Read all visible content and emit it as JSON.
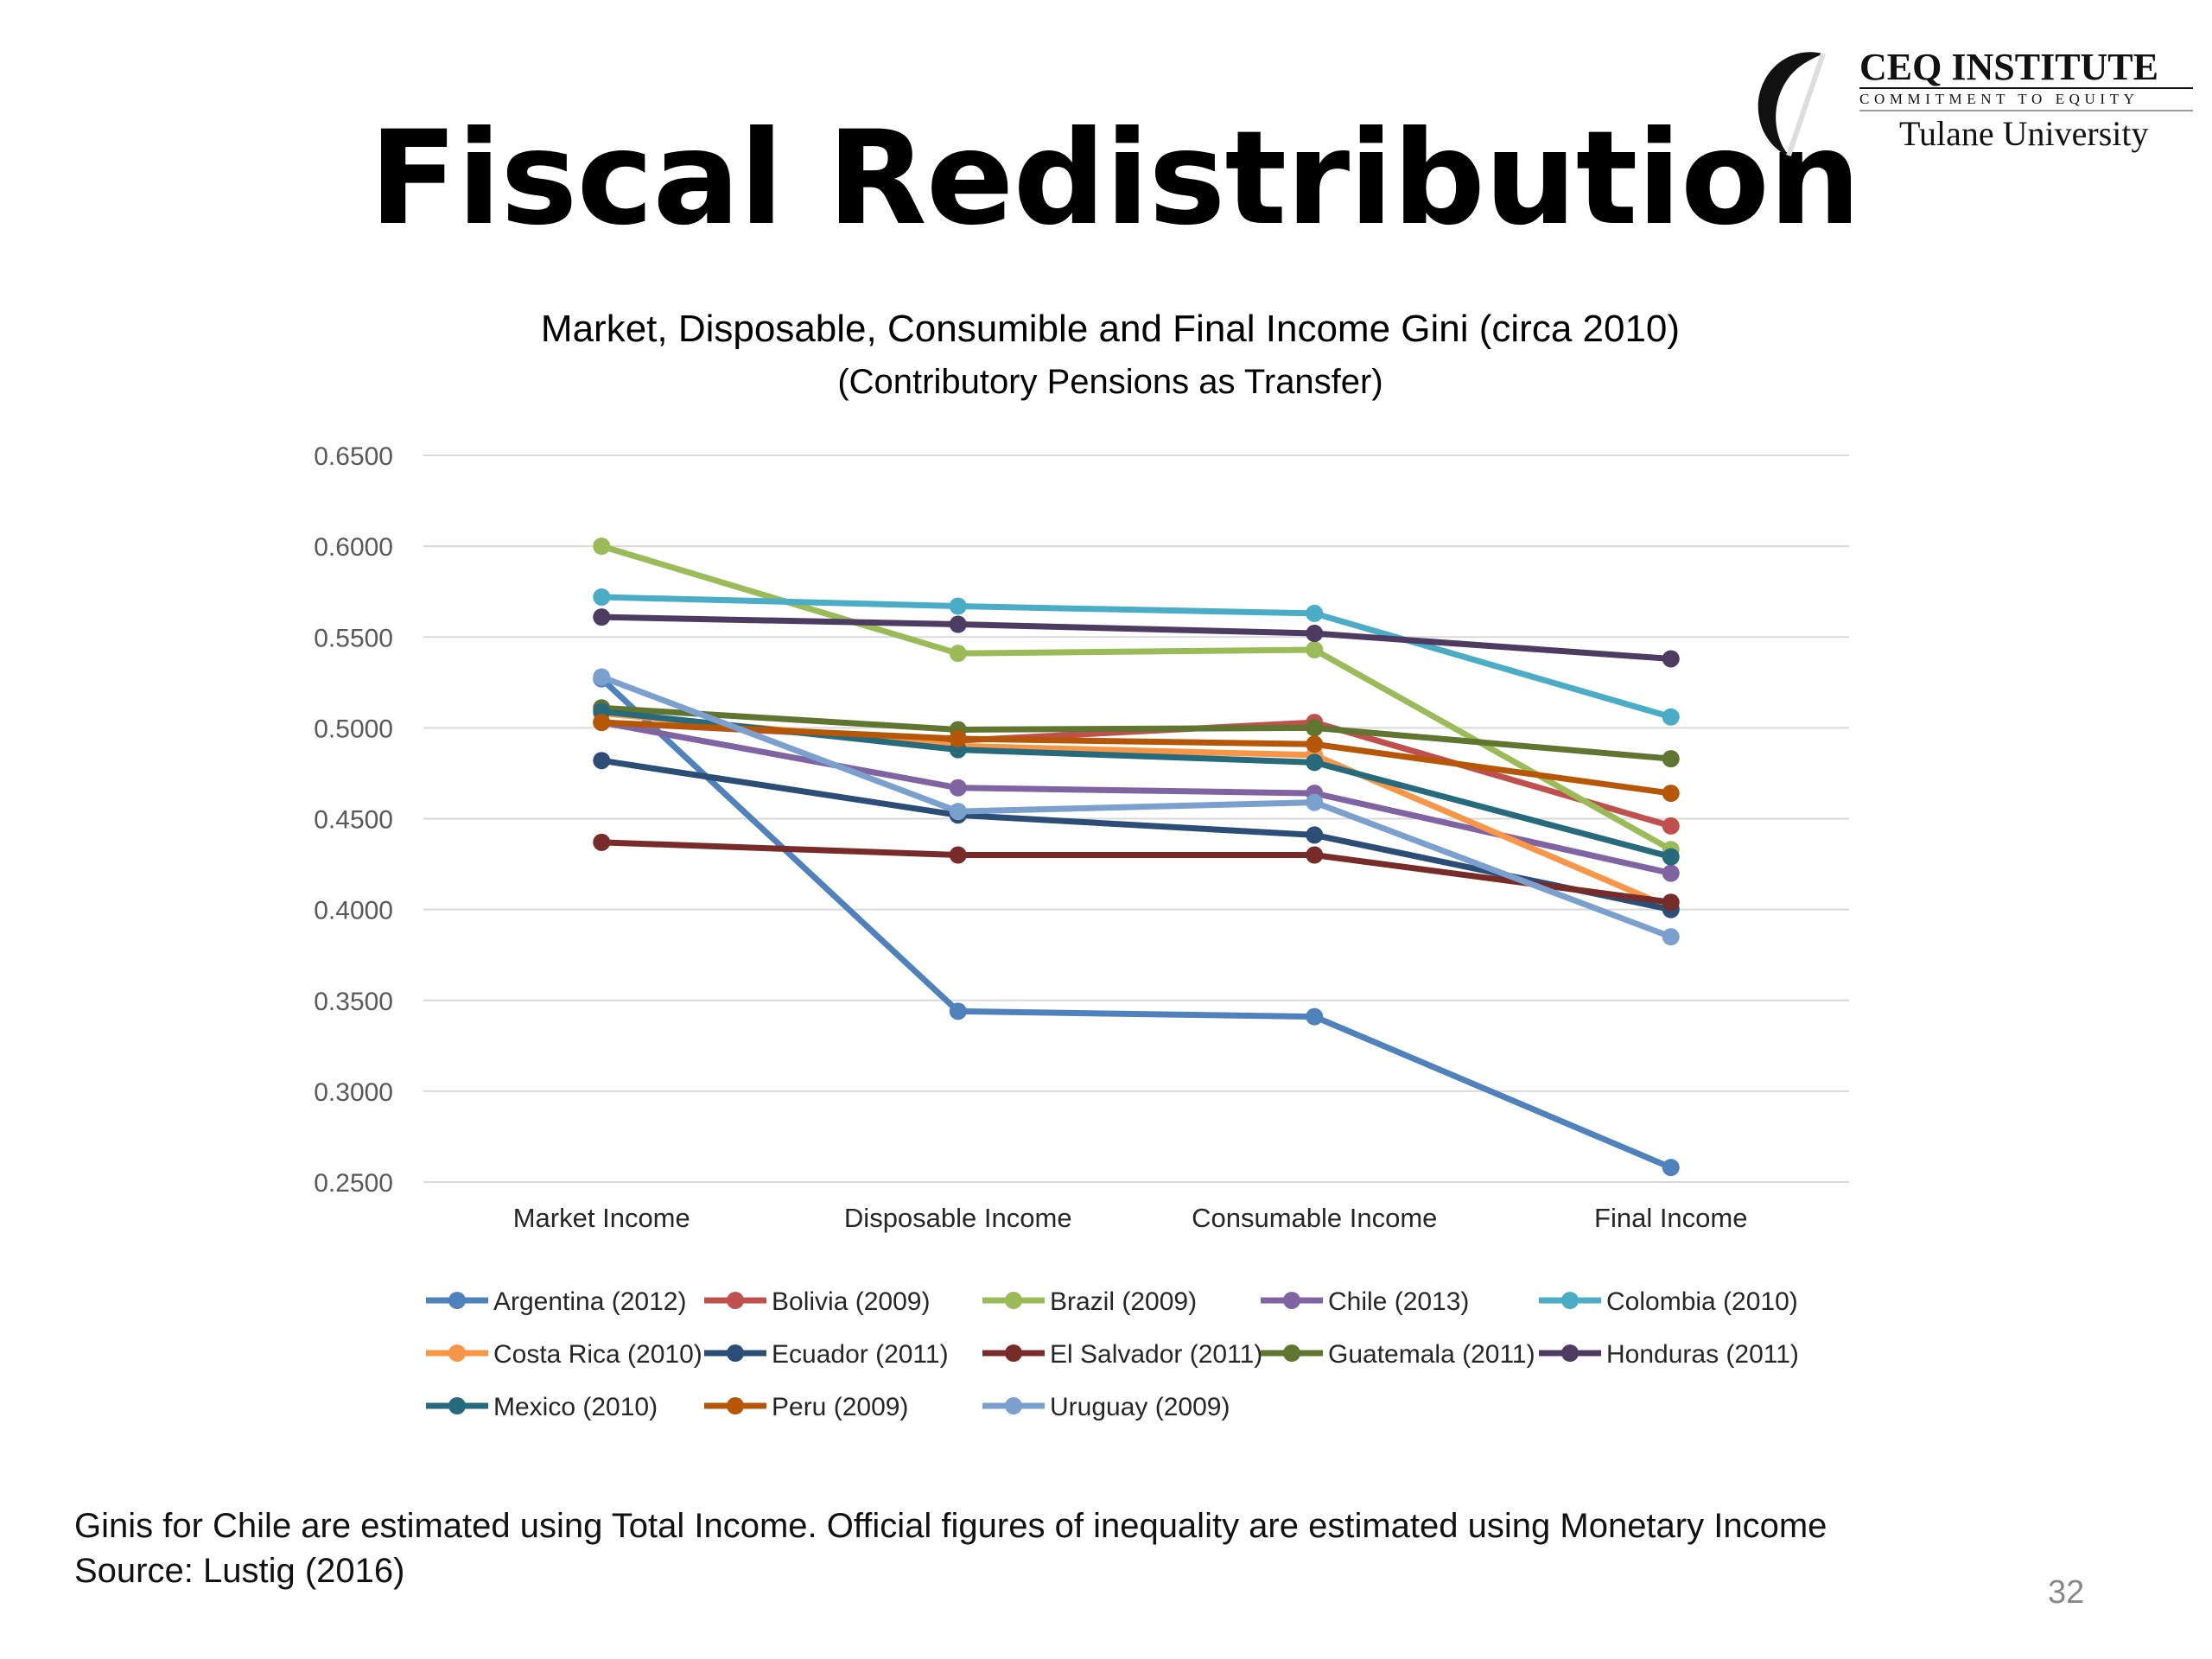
{
  "slide": {
    "title": "Fiscal Redistribution",
    "footnote_line1": "Ginis for Chile are estimated using Total Income. Official figures of inequality are estimated using Monetary Income",
    "footnote_line2": "Source: Lustig (2016)",
    "page_number": "32"
  },
  "logo": {
    "name": "CEQ INSTITUTE",
    "tagline": "COMMITMENT TO EQUITY",
    "university": "Tulane University"
  },
  "colors": {
    "grid": "#d9d9d9",
    "tick_text": "#595959"
  },
  "chart_data": {
    "type": "line",
    "title": "Market, Disposable, Consumible and Final Income Gini (circa 2010)",
    "subtitle": "(Contributory Pensions as Transfer)",
    "xlabel": "",
    "ylabel": "",
    "categories": [
      "Market Income",
      "Disposable Income",
      "Consumable Income",
      "Final Income"
    ],
    "ylim": [
      0.25,
      0.65
    ],
    "yticks": [
      "0.6500",
      "0.6000",
      "0.5500",
      "0.5000",
      "0.4500",
      "0.4000",
      "0.3500",
      "0.3000",
      "0.2500"
    ],
    "ytick_values": [
      0.65,
      0.6,
      0.55,
      0.5,
      0.45,
      0.4,
      0.35,
      0.3,
      0.25
    ],
    "grid": true,
    "legend_position": "bottom",
    "series": [
      {
        "name": "Argentina (2012)",
        "color": "#4f81bd",
        "values": [
          0.527,
          0.344,
          0.341,
          0.258
        ]
      },
      {
        "name": "Bolivia (2009)",
        "color": "#c0504d",
        "values": [
          0.503,
          0.493,
          0.503,
          0.446
        ]
      },
      {
        "name": "Brazil (2009)",
        "color": "#9bbb59",
        "values": [
          0.6,
          0.541,
          0.543,
          0.433
        ]
      },
      {
        "name": "Chile (2013)",
        "color": "#8064a2",
        "values": [
          0.503,
          0.467,
          0.464,
          0.42
        ]
      },
      {
        "name": "Colombia (2010)",
        "color": "#4bacc6",
        "values": [
          0.572,
          0.567,
          0.563,
          0.506
        ]
      },
      {
        "name": "Costa Rica (2010)",
        "color": "#f79646",
        "values": [
          0.508,
          0.49,
          0.485,
          0.401
        ]
      },
      {
        "name": "Ecuador (2011)",
        "color": "#2c4d75",
        "values": [
          0.482,
          0.452,
          0.441,
          0.4
        ]
      },
      {
        "name": "El Salvador (2011)",
        "color": "#772c2a",
        "values": [
          0.437,
          0.43,
          0.43,
          0.404
        ]
      },
      {
        "name": "Guatemala (2011)",
        "color": "#5f7530",
        "values": [
          0.511,
          0.499,
          0.5,
          0.483
        ]
      },
      {
        "name": "Honduras (2011)",
        "color": "#4d3b62",
        "values": [
          0.561,
          0.557,
          0.552,
          0.538
        ]
      },
      {
        "name": "Mexico (2010)",
        "color": "#276a7c",
        "values": [
          0.509,
          0.488,
          0.481,
          0.429
        ]
      },
      {
        "name": "Peru (2009)",
        "color": "#b65708",
        "values": [
          0.503,
          0.494,
          0.491,
          0.464
        ]
      },
      {
        "name": "Uruguay (2009)",
        "color": "#7ba0cd",
        "values": [
          0.528,
          0.454,
          0.459,
          0.385
        ]
      }
    ]
  }
}
